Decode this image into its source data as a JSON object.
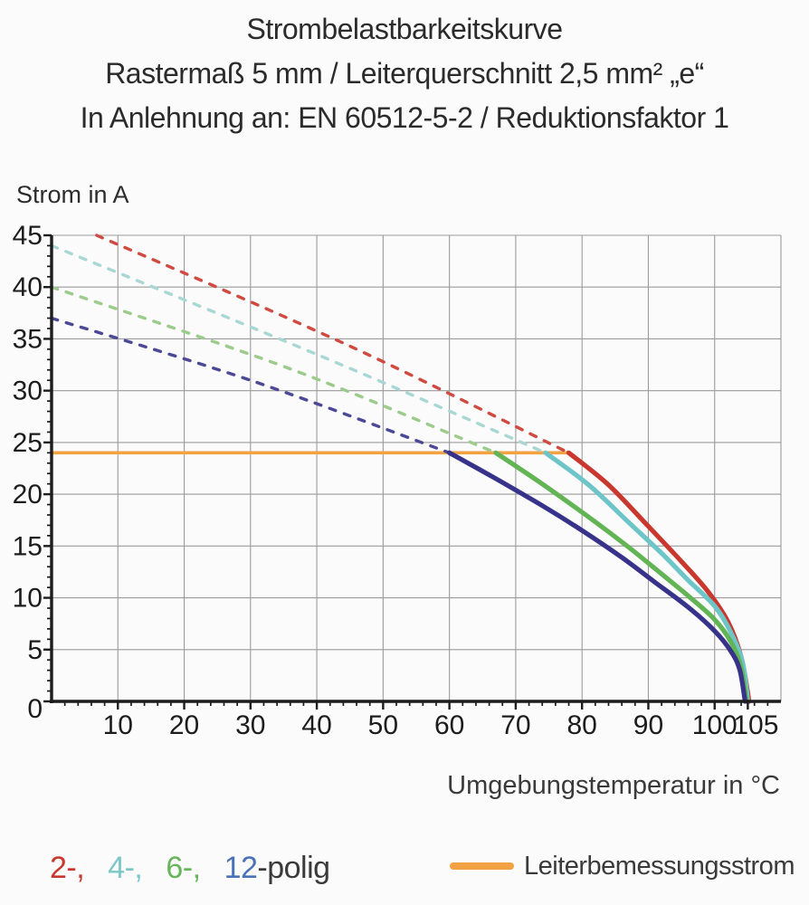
{
  "title": {
    "line1": "Strombelastbarkeitskurve",
    "line2": "Rastermaß 5 mm / Leiterquerschnitt 2,5 mm² „e“",
    "line3": "In Anlehnung an: EN 60512-5-2 / Reduktionsfaktor 1"
  },
  "chart_data": {
    "type": "line",
    "title": "Strombelastbarkeitskurve",
    "xlabel": "Umgebungstemperatur in °C",
    "ylabel": "Strom in A",
    "xlim": [
      0,
      110
    ],
    "ylim": [
      0,
      45
    ],
    "grid": true,
    "grid_x_step": 10,
    "grid_y_step": 5,
    "x_tick_labels": [
      10,
      20,
      30,
      40,
      50,
      60,
      70,
      80,
      90,
      100,
      105
    ],
    "y_tick_labels": [
      0,
      5,
      10,
      15,
      20,
      25,
      30,
      35,
      40,
      45
    ],
    "x_minor_step": 2,
    "y_minor_step": 1,
    "axis_color": "#1c1c1c",
    "grid_color": "#9b9b9b",
    "tick_label_color": "#1c1c1c",
    "rated_current_line": {
      "label": "Leiterbemessungsstrom",
      "y": 24,
      "x_start": 0,
      "x_end": 78,
      "color": "#f2a243"
    },
    "series": [
      {
        "key": "2-polig-dashed",
        "name": "2-polig (derating, dashed)",
        "style": "dashed",
        "color": "#cf4a41",
        "points": [
          [
            6.8,
            45
          ],
          [
            45,
            34.3
          ],
          [
            78,
            24
          ]
        ]
      },
      {
        "key": "4-polig-dashed",
        "name": "4-polig (derating, dashed)",
        "style": "dashed",
        "color": "#a9d8d4",
        "points": [
          [
            0,
            44
          ],
          [
            40,
            33.5
          ],
          [
            74.5,
            24
          ]
        ]
      },
      {
        "key": "6-polig-dashed",
        "name": "6-polig (derating, dashed)",
        "style": "dashed",
        "color": "#9ccb8c",
        "points": [
          [
            0,
            40
          ],
          [
            36,
            32.1
          ],
          [
            67,
            24
          ]
        ]
      },
      {
        "key": "12-polig-dashed",
        "name": "12-polig (derating, dashed)",
        "style": "dashed",
        "color": "#4b4896",
        "points": [
          [
            0,
            37
          ],
          [
            30,
            31
          ],
          [
            60,
            24
          ]
        ]
      },
      {
        "key": "2-polig-solid",
        "name": "2-polig",
        "style": "solid",
        "color": "#c9382e",
        "points": [
          [
            78,
            24
          ],
          [
            84,
            20.9
          ],
          [
            90,
            16.9
          ],
          [
            95,
            13.5
          ],
          [
            99,
            10.6
          ],
          [
            102,
            7.7
          ],
          [
            104,
            4.3
          ],
          [
            105.2,
            0
          ]
        ]
      },
      {
        "key": "4-polig-solid",
        "name": "4-polig",
        "style": "solid",
        "color": "#6ec5c7",
        "points": [
          [
            74.5,
            24
          ],
          [
            81,
            20.9
          ],
          [
            87,
            17.3
          ],
          [
            92,
            14.3
          ],
          [
            96,
            11.7
          ],
          [
            100,
            9.2
          ],
          [
            102.5,
            6.6
          ],
          [
            104.2,
            3.8
          ],
          [
            105,
            0
          ]
        ]
      },
      {
        "key": "6-polig-solid",
        "name": "6-polig",
        "style": "solid",
        "color": "#62b455",
        "points": [
          [
            67,
            24
          ],
          [
            74,
            21
          ],
          [
            81,
            17.8
          ],
          [
            87,
            14.9
          ],
          [
            92,
            12.3
          ],
          [
            96,
            10.2
          ],
          [
            100,
            7.9
          ],
          [
            102.5,
            5.7
          ],
          [
            104,
            3.3
          ],
          [
            104.8,
            0
          ]
        ]
      },
      {
        "key": "12-polig-solid",
        "name": "12-polig",
        "style": "solid",
        "color": "#37338a",
        "points": [
          [
            60,
            24
          ],
          [
            67,
            21.5
          ],
          [
            74,
            18.9
          ],
          [
            80,
            16.5
          ],
          [
            86,
            13.9
          ],
          [
            91,
            11.5
          ],
          [
            96,
            9.1
          ],
          [
            100,
            6.8
          ],
          [
            102.5,
            4.8
          ],
          [
            103.8,
            3.0
          ],
          [
            104.6,
            0
          ]
        ]
      }
    ]
  },
  "legend": {
    "pole_items": [
      {
        "label": "2-,",
        "color": "#c9382e"
      },
      {
        "label": "4-,",
        "color": "#7cc7c9"
      },
      {
        "label": "6-,",
        "color": "#67b65a"
      },
      {
        "label": "12",
        "color": "#4a72b8"
      }
    ],
    "pole_suffix": "-polig",
    "text_color": "#3a3a3a",
    "rated_current_label": "Leiterbemessungsstrom",
    "rated_current_color": "#f2a243"
  }
}
